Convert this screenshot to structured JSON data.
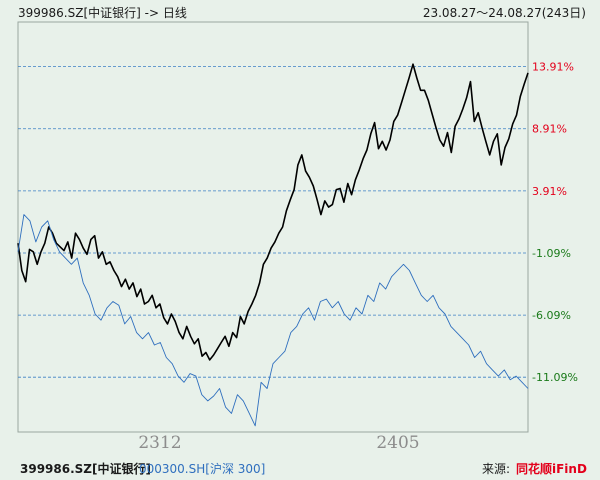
{
  "header": {
    "title": "399986.SZ[中证银行] -> 日线",
    "range": "23.08.27～24.08.27(243日)"
  },
  "footer": {
    "legend_primary": "399986.SZ[中证银行]",
    "legend_secondary": "000300.SH[沪深 300]",
    "source_label": "来源:",
    "brand": "同花顺iFinD"
  },
  "colors": {
    "background": "#e8f1ea",
    "primary_series": "#000000",
    "secondary_series": "#2f6fbe",
    "positive": "#e3001b",
    "negative": "#1a7a1a",
    "gridline": "#3b7fc4"
  },
  "chart_data": {
    "type": "line",
    "x_tick_labels": [
      "2312",
      "2405"
    ],
    "y_tick_labels": [
      {
        "text": "13.91%",
        "value": 13.91
      },
      {
        "text": "8.91%",
        "value": 8.91
      },
      {
        "text": "3.91%",
        "value": 3.91
      },
      {
        "text": "-1.09%",
        "value": -1.09
      },
      {
        "text": "-6.09%",
        "value": -6.09
      },
      {
        "text": "-11.09%",
        "value": -11.09
      }
    ],
    "ylim": [
      -15.5,
      17.5
    ],
    "grid": true,
    "series": [
      {
        "name": "399986.SZ[中证银行]",
        "values": [
          -0.3,
          -2.5,
          -3.4,
          -0.8,
          -1.0,
          -2.0,
          -1.0,
          -0.3,
          1.0,
          0.5,
          -0.3,
          -0.6,
          -0.9,
          -0.2,
          -1.5,
          0.5,
          0.0,
          -0.7,
          -1.2,
          0.0,
          0.3,
          -1.5,
          -1.0,
          -2.0,
          -1.8,
          -2.5,
          -3.0,
          -3.8,
          -3.2,
          -4.0,
          -3.5,
          -4.6,
          -4.0,
          -5.2,
          -5.0,
          -4.5,
          -5.5,
          -5.2,
          -6.3,
          -6.8,
          -6.0,
          -6.6,
          -7.5,
          -8.0,
          -7.0,
          -7.8,
          -8.4,
          -8.0,
          -9.4,
          -9.1,
          -9.7,
          -9.3,
          -8.8,
          -8.3,
          -7.8,
          -8.6,
          -7.5,
          -7.9,
          -6.2,
          -6.8,
          -5.8,
          -5.2,
          -4.5,
          -3.5,
          -2.0,
          -1.5,
          -0.7,
          -0.2,
          0.5,
          1.0,
          2.3,
          3.2,
          4.0,
          6.0,
          6.8,
          5.5,
          5.0,
          4.3,
          3.2,
          2.0,
          3.1,
          2.6,
          2.8,
          4.0,
          4.1,
          3.0,
          4.5,
          3.6,
          4.8,
          5.6,
          6.5,
          7.2,
          8.5,
          9.4,
          7.3,
          7.9,
          7.2,
          8.0,
          9.5,
          10.0,
          11.0,
          12.0,
          13.0,
          14.1,
          13.0,
          12.0,
          12.0,
          11.2,
          10.1,
          9.0,
          8.0,
          7.5,
          8.6,
          7.0,
          9.1,
          9.7,
          10.5,
          11.4,
          12.7,
          9.5,
          10.2,
          9.0,
          7.9,
          6.8,
          7.9,
          8.5,
          6.0,
          7.4,
          8.1,
          9.3,
          10.0,
          11.5,
          12.5,
          13.4
        ],
        "color": "#000000"
      },
      {
        "name": "000300.SH[沪深 300]",
        "values": [
          -1.0,
          2.0,
          1.5,
          -0.2,
          1.0,
          1.5,
          0.0,
          -1.0,
          -1.5,
          -2.0,
          -1.5,
          -3.5,
          -4.5,
          -6.0,
          -6.5,
          -5.5,
          -5.0,
          -5.3,
          -6.8,
          -6.2,
          -7.5,
          -8.0,
          -7.5,
          -8.5,
          -8.3,
          -9.5,
          -10.0,
          -11.0,
          -11.5,
          -10.8,
          -11.0,
          -12.5,
          -13.0,
          -12.6,
          -12.0,
          -13.5,
          -14.0,
          -12.5,
          -13.0,
          -14.0,
          -15.0,
          -11.5,
          -12.0,
          -10.0,
          -9.5,
          -9.0,
          -7.5,
          -7.0,
          -6.0,
          -5.5,
          -6.5,
          -5.0,
          -4.8,
          -5.5,
          -5.0,
          -6.0,
          -6.5,
          -5.5,
          -6.0,
          -4.5,
          -5.0,
          -3.5,
          -4.0,
          -3.0,
          -2.5,
          -2.0,
          -2.5,
          -3.5,
          -4.5,
          -5.0,
          -4.5,
          -5.5,
          -6.0,
          -7.0,
          -7.5,
          -8.0,
          -8.5,
          -9.5,
          -9.0,
          -10.0,
          -10.5,
          -11.0,
          -10.5,
          -11.3,
          -11.0,
          -11.5,
          -12.0
        ],
        "color": "#2f6fbe"
      }
    ]
  }
}
